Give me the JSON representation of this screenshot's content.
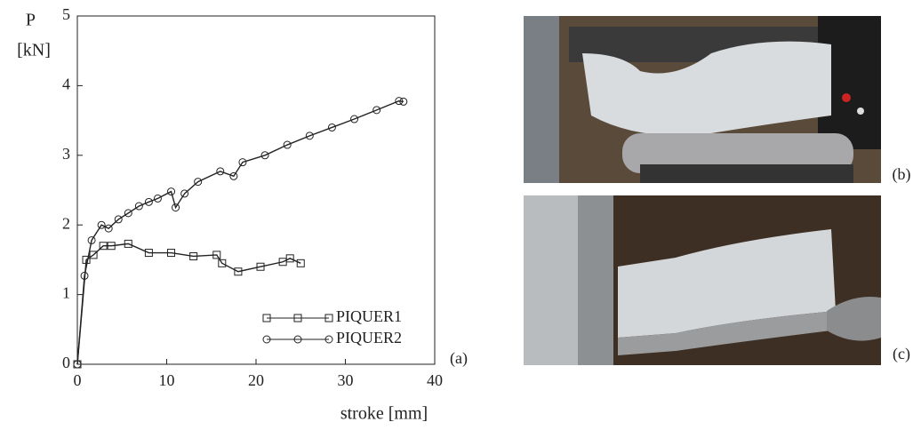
{
  "chart_data": {
    "type": "line",
    "xlabel": "stroke [mm]",
    "ylabel": [
      "P",
      "[kN]"
    ],
    "xlim": [
      0,
      40
    ],
    "xticks": [
      0,
      10,
      20,
      30,
      40
    ],
    "ylim": [
      0,
      5
    ],
    "yticks": [
      0,
      1,
      2,
      3,
      4,
      5
    ],
    "legend": "lower right",
    "series": [
      {
        "name": "PIQUER1",
        "color": "#222222",
        "marker": "square",
        "x": [
          0,
          1,
          1.8,
          2.9,
          3.8,
          5.7,
          8,
          10.5,
          13,
          15.6,
          16.2,
          18,
          20.5,
          23,
          23.8,
          25
        ],
        "values": [
          0,
          1.5,
          1.57,
          1.7,
          1.7,
          1.73,
          1.6,
          1.6,
          1.55,
          1.57,
          1.45,
          1.33,
          1.4,
          1.47,
          1.52,
          1.45
        ]
      },
      {
        "name": "PIQUER2",
        "color": "#222222",
        "marker": "circle",
        "x": [
          0,
          0.8,
          1.6,
          2.7,
          3.5,
          4.6,
          5.7,
          6.9,
          8,
          9,
          10.5,
          11,
          12,
          13.5,
          16,
          17.5,
          18.5,
          21,
          23.5,
          26,
          28.5,
          31,
          33.5,
          36,
          36.5
        ],
        "values": [
          0,
          1.27,
          1.78,
          2.0,
          1.95,
          2.08,
          2.17,
          2.27,
          2.33,
          2.38,
          2.48,
          2.25,
          2.45,
          2.62,
          2.77,
          2.7,
          2.9,
          3.0,
          3.15,
          3.28,
          3.4,
          3.52,
          3.65,
          3.78,
          3.77
        ]
      }
    ]
  },
  "panel_labels": [
    "(a)",
    "(b)",
    "(c)"
  ]
}
